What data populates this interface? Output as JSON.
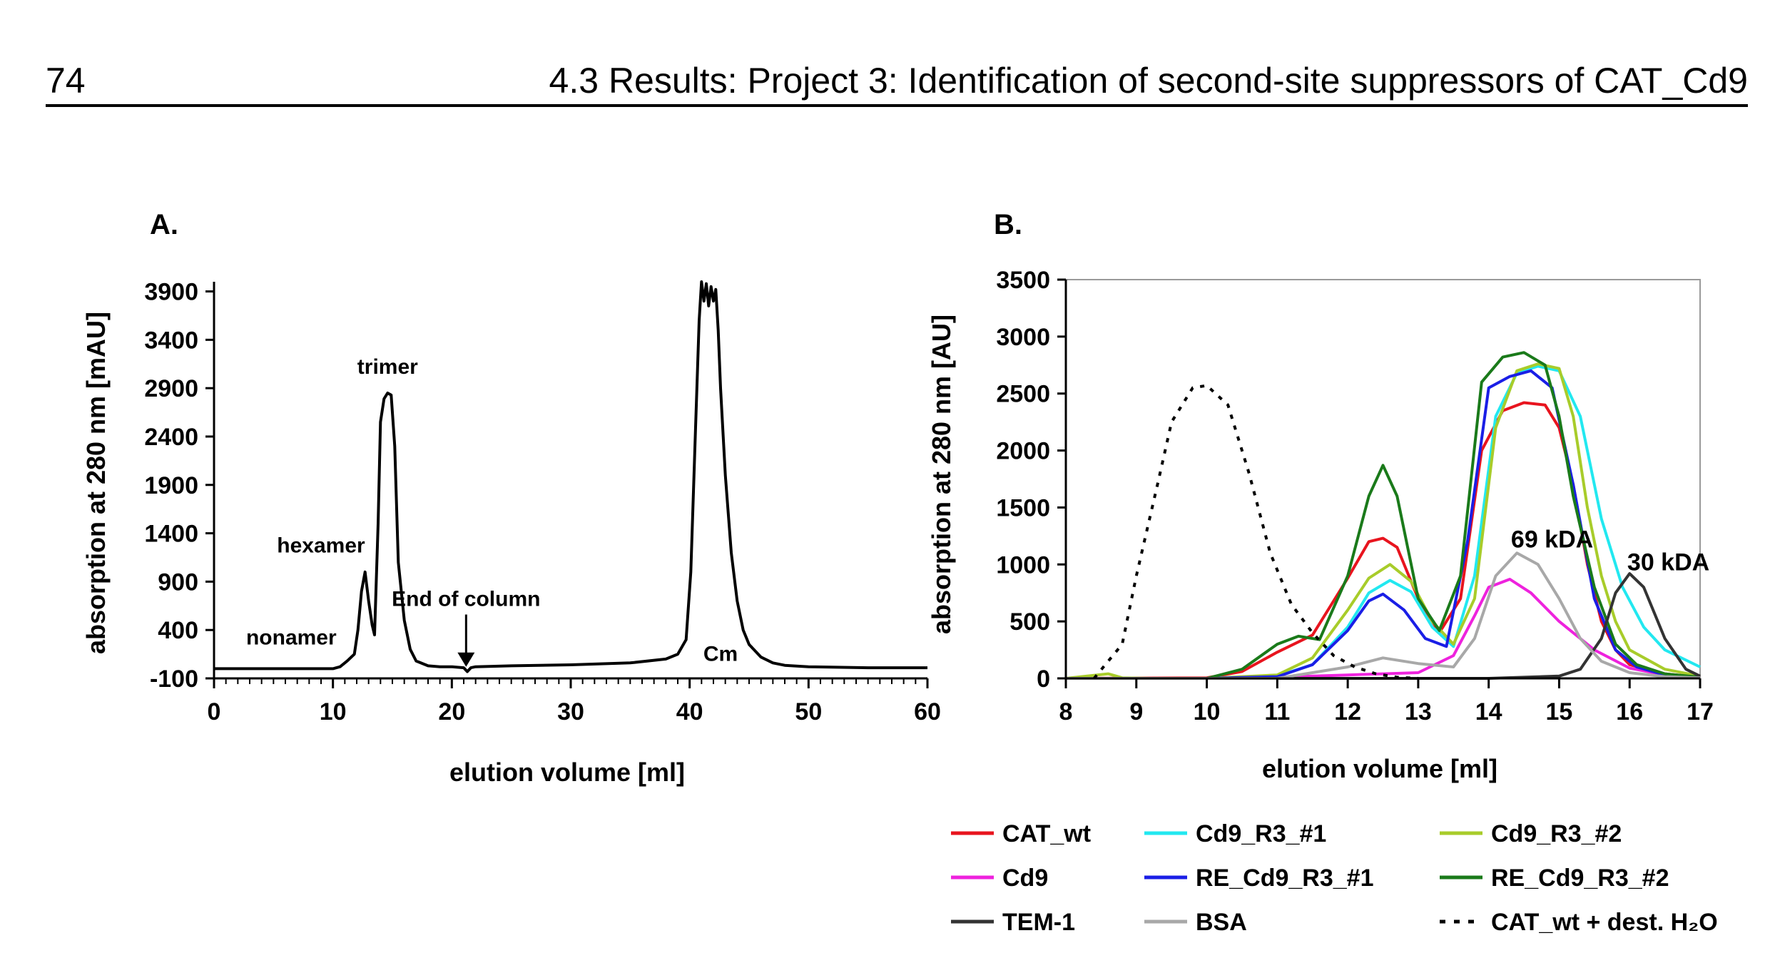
{
  "page": {
    "number": "74",
    "title": "4.3 Results: Project 3: Identification of second-site suppressors of CAT_Cd9"
  },
  "chart_data": [
    {
      "panel": "A.",
      "type": "line",
      "xlabel": "elution volume [ml]",
      "ylabel": "absorption at 280 nm [mAU]",
      "xlim": [
        0,
        60
      ],
      "ylim": [
        -100,
        4000
      ],
      "xticks": [
        0,
        10,
        20,
        30,
        40,
        50,
        60
      ],
      "yticks": [
        -100,
        400,
        900,
        1400,
        1900,
        2400,
        2900,
        3400,
        3900
      ],
      "grid": false,
      "series": [
        {
          "name": "absorption",
          "color": "#000000",
          "x": [
            0,
            10,
            10.6,
            11.2,
            11.8,
            12.1,
            12.4,
            12.7,
            13.0,
            13.3,
            13.5,
            13.8,
            14.0,
            14.3,
            14.6,
            14.9,
            15.2,
            15.5,
            16.0,
            16.5,
            17.0,
            18.0,
            19.0,
            20.0,
            21.0,
            21.3,
            21.6,
            22.0,
            25.0,
            30.0,
            35.0,
            38.0,
            39.0,
            39.7,
            40.1,
            40.5,
            40.8,
            41.0,
            41.2,
            41.4,
            41.6,
            41.8,
            42.0,
            42.2,
            42.4,
            42.6,
            43.0,
            43.5,
            44.0,
            44.5,
            45.0,
            46.0,
            47.0,
            48.0,
            50.0,
            55.0,
            60.0
          ],
          "y": [
            0,
            0,
            20,
            80,
            150,
            400,
            800,
            1000,
            700,
            450,
            350,
            1500,
            2550,
            2790,
            2850,
            2830,
            2300,
            1100,
            500,
            200,
            80,
            30,
            20,
            20,
            10,
            -30,
            10,
            20,
            30,
            40,
            60,
            100,
            150,
            300,
            1000,
            2500,
            3600,
            4000,
            3800,
            3980,
            3750,
            3950,
            3800,
            3920,
            3500,
            2900,
            2000,
            1200,
            700,
            400,
            250,
            120,
            60,
            35,
            20,
            10,
            10
          ]
        }
      ],
      "annotations": [
        {
          "text": "trimer",
          "x": 14.6,
          "y": 3050
        },
        {
          "text": "hexamer",
          "x": 9,
          "y": 1200
        },
        {
          "text": "nonamer",
          "x": 6.5,
          "y": 250
        },
        {
          "text": "End of column",
          "x": 21.2,
          "y": 650
        },
        {
          "text": "Cm",
          "x": 42.6,
          "y": 80
        }
      ]
    },
    {
      "panel": "B.",
      "type": "line",
      "xlabel": "elution volume [ml]",
      "ylabel": "absorption at 280 nm [AU]",
      "xlim": [
        8,
        17
      ],
      "ylim": [
        0,
        3500
      ],
      "xticks": [
        8,
        9,
        10,
        11,
        12,
        13,
        14,
        15,
        16,
        17
      ],
      "yticks": [
        0,
        500,
        1000,
        1500,
        2000,
        2500,
        3000,
        3500
      ],
      "grid": false,
      "legend_position": "bottom",
      "series": [
        {
          "name": "CAT_wt",
          "color": "#e8141e",
          "dash": "",
          "x": [
            8,
            10,
            10.5,
            11,
            11.5,
            12,
            12.3,
            12.5,
            12.7,
            13,
            13.3,
            13.6,
            13.9,
            14.2,
            14.5,
            14.8,
            15.0,
            15.2,
            15.4,
            15.6,
            15.8,
            16,
            16.5,
            17
          ],
          "y": [
            0,
            5,
            60,
            230,
            380,
            880,
            1200,
            1230,
            1150,
            700,
            400,
            700,
            2000,
            2350,
            2420,
            2400,
            2200,
            1700,
            1000,
            500,
            250,
            120,
            40,
            10
          ]
        },
        {
          "name": "Cd9_R3_#1",
          "color": "#22e8f0",
          "dash": "",
          "x": [
            8,
            10,
            11,
            11.5,
            12,
            12.3,
            12.6,
            12.9,
            13.2,
            13.5,
            13.8,
            14.1,
            14.4,
            14.7,
            15.0,
            15.3,
            15.6,
            15.9,
            16.2,
            16.5,
            17
          ],
          "y": [
            0,
            0,
            20,
            120,
            450,
            750,
            860,
            760,
            450,
            280,
            900,
            2300,
            2680,
            2740,
            2700,
            2300,
            1400,
            800,
            450,
            250,
            100
          ]
        },
        {
          "name": "Cd9_R3_#2",
          "color": "#a8cc2a",
          "dash": "",
          "x": [
            8,
            8.6,
            8.8,
            9.2,
            10,
            11,
            11.5,
            12,
            12.3,
            12.6,
            12.9,
            13.2,
            13.5,
            13.8,
            14.1,
            14.4,
            14.7,
            15.0,
            15.2,
            15.4,
            15.6,
            15.8,
            16,
            16.5,
            17
          ],
          "y": [
            0,
            40,
            5,
            0,
            0,
            30,
            180,
            600,
            880,
            1000,
            850,
            500,
            300,
            700,
            2200,
            2700,
            2760,
            2720,
            2300,
            1500,
            900,
            500,
            250,
            80,
            20
          ]
        },
        {
          "name": "Cd9",
          "color": "#ee22dd",
          "dash": "",
          "x": [
            8,
            10,
            11,
            12,
            12.5,
            13,
            13.5,
            13.8,
            14.0,
            14.3,
            14.6,
            15.0,
            15.5,
            16,
            16.5,
            17
          ],
          "y": [
            0,
            0,
            10,
            30,
            40,
            50,
            200,
            550,
            800,
            870,
            750,
            500,
            250,
            90,
            30,
            10
          ]
        },
        {
          "name": "RE_Cd9_R3_#1",
          "color": "#1a1ee6",
          "dash": "",
          "x": [
            8,
            10,
            11,
            11.5,
            12,
            12.3,
            12.5,
            12.8,
            13.1,
            13.4,
            13.7,
            14.0,
            14.3,
            14.6,
            14.9,
            15.2,
            15.5,
            15.8,
            16.1,
            16.5,
            17
          ],
          "y": [
            0,
            0,
            15,
            120,
            420,
            680,
            740,
            600,
            350,
            280,
            1200,
            2550,
            2650,
            2700,
            2550,
            1700,
            700,
            250,
            100,
            30,
            10
          ]
        },
        {
          "name": "RE_Cd9_R3_#2",
          "color": "#1a7a1a",
          "dash": "",
          "x": [
            8,
            10,
            10.5,
            11,
            11.3,
            11.6,
            12,
            12.3,
            12.5,
            12.7,
            13,
            13.3,
            13.6,
            13.9,
            14.2,
            14.5,
            14.8,
            15.0,
            15.2,
            15.5,
            15.8,
            16.1,
            16.5,
            17
          ],
          "y": [
            0,
            0,
            80,
            300,
            370,
            340,
            900,
            1600,
            1870,
            1600,
            700,
            420,
            900,
            2600,
            2820,
            2860,
            2750,
            2300,
            1600,
            800,
            300,
            120,
            40,
            10
          ]
        },
        {
          "name": "TEM-1",
          "color": "#333333",
          "dash": "",
          "x": [
            8,
            13,
            14,
            15,
            15.3,
            15.6,
            15.8,
            16.0,
            16.2,
            16.5,
            16.8,
            17
          ],
          "y": [
            0,
            0,
            0,
            20,
            80,
            350,
            750,
            920,
            800,
            350,
            80,
            20
          ]
        },
        {
          "name": "BSA",
          "color": "#a8a8a8",
          "dash": "",
          "x": [
            8,
            11,
            12,
            12.5,
            13,
            13.5,
            13.8,
            14.1,
            14.4,
            14.7,
            15.0,
            15.3,
            15.6,
            16,
            16.5,
            17
          ],
          "y": [
            0,
            0,
            100,
            180,
            130,
            100,
            350,
            900,
            1100,
            1000,
            700,
            350,
            150,
            50,
            15,
            5
          ]
        },
        {
          "name": "CAT_wt + dest. H₂O",
          "color": "#000000",
          "dash": "6,10",
          "x": [
            8.4,
            8.8,
            9.0,
            9.3,
            9.5,
            9.8,
            10.0,
            10.3,
            10.6,
            10.9,
            11.2,
            11.5,
            11.8,
            12.1,
            12.4,
            12.7,
            13.0
          ],
          "y": [
            0,
            300,
            900,
            1700,
            2250,
            2550,
            2570,
            2400,
            1800,
            1100,
            650,
            400,
            200,
            100,
            40,
            10,
            0
          ]
        }
      ],
      "annotations": [
        {
          "text": "69 kDA",
          "x": 14.9,
          "y": 1150
        },
        {
          "text": "30 kDA",
          "x": 16.55,
          "y": 950
        }
      ]
    }
  ]
}
